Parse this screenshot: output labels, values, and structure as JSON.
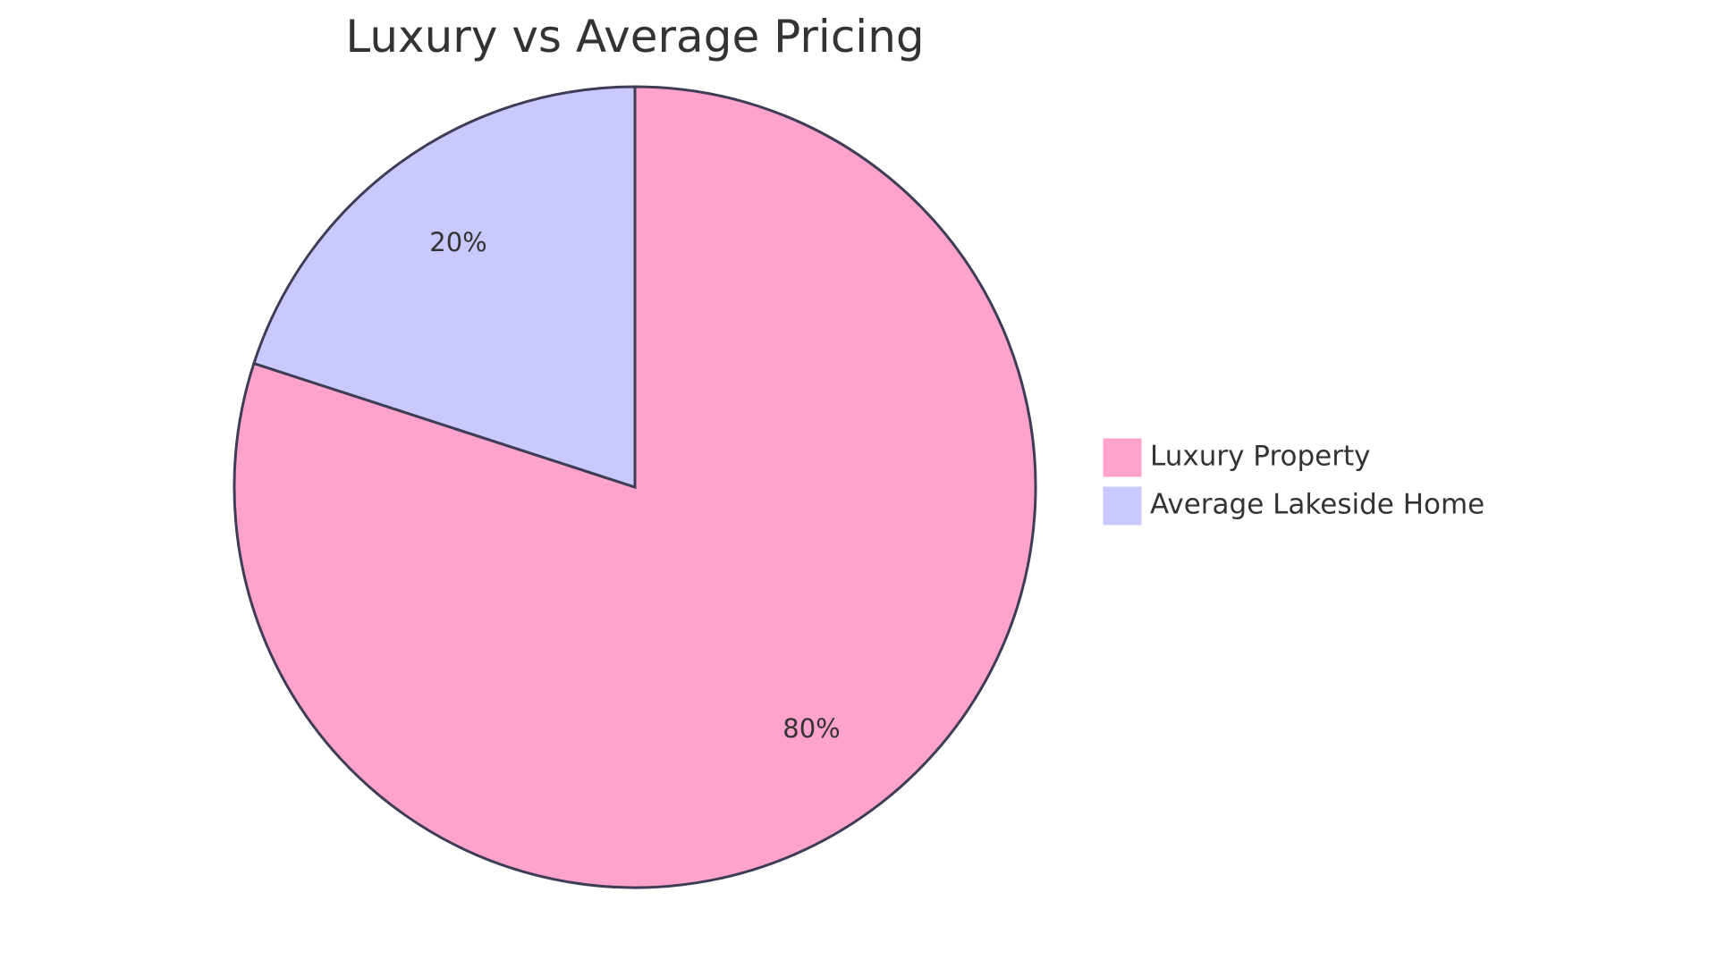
{
  "chart_data": {
    "type": "pie",
    "title": "Luxury vs Average Pricing",
    "slices": [
      {
        "name": "Luxury Property",
        "value": 80,
        "label": "80%",
        "color": "#ffa3cd"
      },
      {
        "name": "Average Lakeside Home",
        "value": 20,
        "label": "20%",
        "color": "#c9c9ff"
      }
    ],
    "start_angle": "top",
    "direction": "clockwise",
    "outline_color": "#3f3d56",
    "legend_position": "right"
  }
}
